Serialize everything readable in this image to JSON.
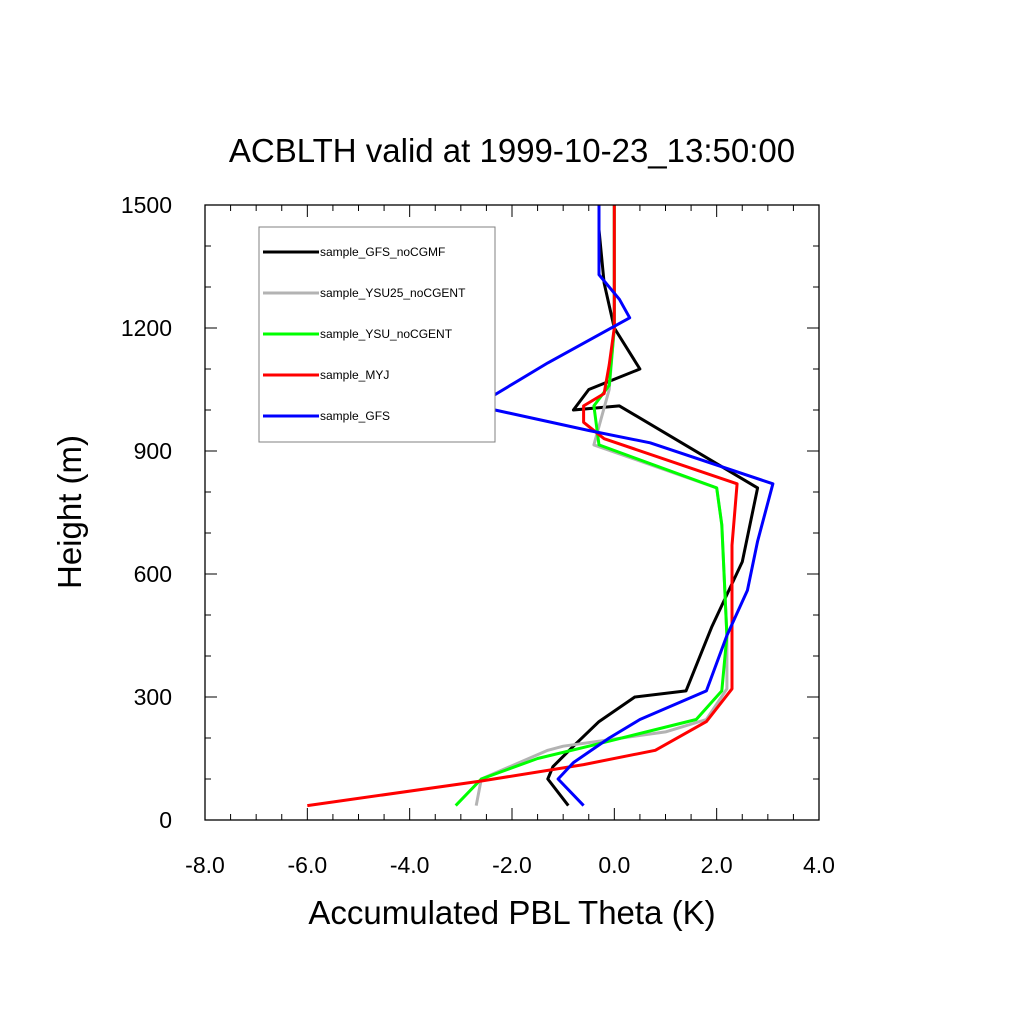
{
  "chart_data": {
    "type": "line",
    "title": "ACBLTH valid at 1999-10-23_13:50:00",
    "xlabel": "Accumulated PBL Theta (K)",
    "ylabel": "Height (m)",
    "xlim": [
      -8.0,
      4.0
    ],
    "ylim": [
      0,
      1500
    ],
    "xticks": [
      "-8.0",
      "-6.0",
      "-4.0",
      "-2.0",
      "0.0",
      "2.0",
      "4.0"
    ],
    "yticks": [
      "0",
      "300",
      "600",
      "900",
      "1200",
      "1500"
    ],
    "legend_position": "top-left",
    "grid": false,
    "series": [
      {
        "name": "sample_GFS_noCGMF",
        "color": "#000000",
        "points": [
          [
            -0.9,
            35
          ],
          [
            -1.3,
            100
          ],
          [
            -1.2,
            130
          ],
          [
            -0.8,
            180
          ],
          [
            -0.3,
            240
          ],
          [
            0.4,
            300
          ],
          [
            1.4,
            315
          ],
          [
            1.9,
            470
          ],
          [
            2.5,
            630
          ],
          [
            2.8,
            810
          ],
          [
            0.1,
            1010
          ],
          [
            -0.8,
            1000
          ],
          [
            -0.5,
            1050
          ],
          [
            0.5,
            1100
          ],
          [
            0.0,
            1200
          ],
          [
            -0.2,
            1310
          ],
          [
            -0.3,
            1440
          ],
          [
            -0.3,
            1500
          ]
        ]
      },
      {
        "name": "sample_YSU25_noCGENT",
        "color": "#b3b3b3",
        "points": [
          [
            -2.7,
            35
          ],
          [
            -2.6,
            100
          ],
          [
            -1.3,
            170
          ],
          [
            -1.0,
            180
          ],
          [
            1.0,
            215
          ],
          [
            1.8,
            245
          ],
          [
            2.2,
            320
          ],
          [
            2.2,
            450
          ],
          [
            2.1,
            720
          ],
          [
            2.0,
            810
          ],
          [
            -0.4,
            915
          ],
          [
            -0.3,
            960
          ],
          [
            -0.1,
            1050
          ],
          [
            0.0,
            1200
          ],
          [
            0.0,
            1500
          ]
        ]
      },
      {
        "name": "sample_YSU_noCGENT",
        "color": "#00ff00",
        "points": [
          [
            -3.1,
            35
          ],
          [
            -2.6,
            100
          ],
          [
            -1.5,
            150
          ],
          [
            -0.5,
            180
          ],
          [
            1.6,
            245
          ],
          [
            2.1,
            315
          ],
          [
            2.2,
            450
          ],
          [
            2.1,
            720
          ],
          [
            2.0,
            810
          ],
          [
            -0.3,
            915
          ],
          [
            -0.4,
            1010
          ],
          [
            -0.1,
            1060
          ],
          [
            0.0,
            1200
          ],
          [
            0.0,
            1500
          ]
        ]
      },
      {
        "name": "sample_MYJ",
        "color": "#ff0000",
        "points": [
          [
            -6.0,
            35
          ],
          [
            -2.6,
            95
          ],
          [
            -0.6,
            135
          ],
          [
            0.8,
            170
          ],
          [
            1.8,
            240
          ],
          [
            2.3,
            320
          ],
          [
            2.3,
            450
          ],
          [
            2.3,
            670
          ],
          [
            2.4,
            820
          ],
          [
            -0.2,
            930
          ],
          [
            -0.6,
            970
          ],
          [
            -0.6,
            1010
          ],
          [
            -0.2,
            1040
          ],
          [
            -0.1,
            1110
          ],
          [
            0.0,
            1200
          ],
          [
            0.0,
            1500
          ]
        ]
      },
      {
        "name": "sample_GFS",
        "color": "#0000ff",
        "points": [
          [
            -0.6,
            35
          ],
          [
            -1.1,
            100
          ],
          [
            -0.8,
            140
          ],
          [
            -0.1,
            200
          ],
          [
            0.5,
            245
          ],
          [
            1.8,
            315
          ],
          [
            2.2,
            450
          ],
          [
            2.6,
            560
          ],
          [
            2.8,
            680
          ],
          [
            3.1,
            820
          ],
          [
            0.7,
            920
          ],
          [
            -0.5,
            950
          ],
          [
            -2.7,
            1010
          ],
          [
            -1.3,
            1115
          ],
          [
            0.3,
            1225
          ],
          [
            0.1,
            1270
          ],
          [
            -0.3,
            1330
          ],
          [
            -0.3,
            1440
          ],
          [
            -0.3,
            1500
          ]
        ]
      }
    ]
  }
}
